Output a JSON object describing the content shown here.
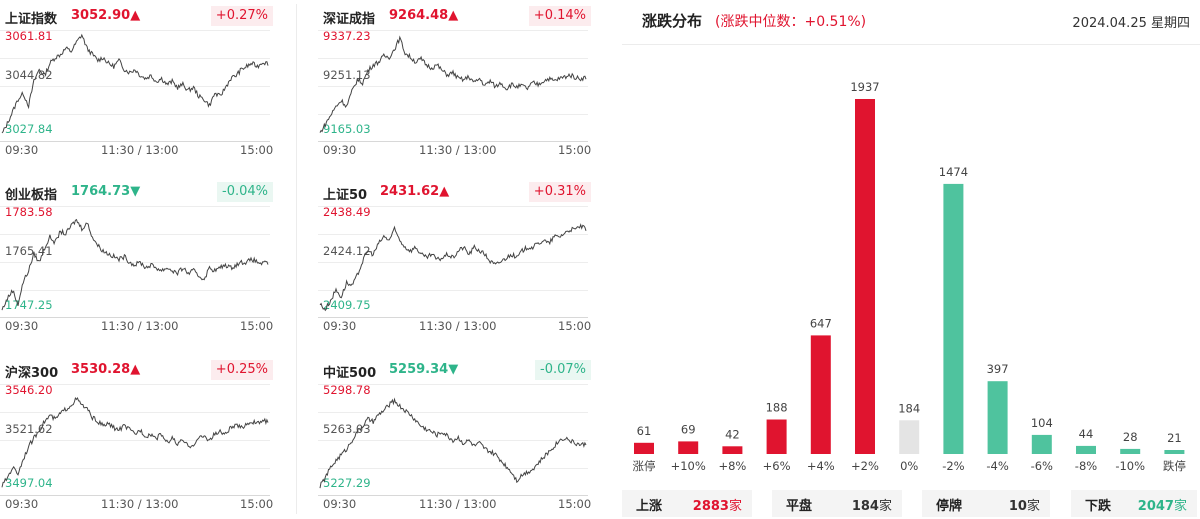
{
  "panels": [
    {
      "name": "上证指数",
      "price": "3052.90",
      "arrow": "▲",
      "direction": "up",
      "change": "+0.27%",
      "y_top": "3061.81",
      "y_mid": "3044.82",
      "y_bot": "3027.84",
      "x_start": "09:30",
      "x_mid": "11:30 / 13:00",
      "x_end": "15:00",
      "series": [
        3028.5,
        3032,
        3036,
        3040,
        3042,
        3038,
        3046,
        3050,
        3048,
        3052,
        3054,
        3055,
        3057,
        3056,
        3059,
        3061.5,
        3057,
        3055,
        3053,
        3054,
        3052,
        3051,
        3053,
        3050,
        3049,
        3050,
        3048,
        3047,
        3048,
        3046,
        3047,
        3045,
        3046,
        3044,
        3045,
        3043,
        3044,
        3041,
        3040,
        3038,
        3042,
        3041,
        3044,
        3047,
        3048,
        3050,
        3051,
        3052,
        3051,
        3052.5,
        3052
      ]
    },
    {
      "name": "深证成指",
      "price": "9264.48",
      "arrow": "▲",
      "direction": "up",
      "change": "+0.14%",
      "y_top": "9337.23",
      "y_mid": "9251.13",
      "y_bot": "9165.03",
      "x_start": "09:30",
      "x_mid": "11:30 / 13:00",
      "x_end": "15:00",
      "series": [
        9170,
        9185,
        9200,
        9215,
        9225,
        9215,
        9240,
        9260,
        9255,
        9275,
        9285,
        9290,
        9300,
        9298,
        9312,
        9330,
        9305,
        9298,
        9290,
        9295,
        9285,
        9280,
        9285,
        9275,
        9268,
        9272,
        9262,
        9260,
        9265,
        9255,
        9262,
        9250,
        9258,
        9248,
        9255,
        9245,
        9252,
        9248,
        9250,
        9245,
        9255,
        9252,
        9258,
        9262,
        9258,
        9262,
        9265,
        9268,
        9264,
        9262,
        9264
      ]
    },
    {
      "name": "创业板指",
      "price": "1764.73",
      "arrow": "▼",
      "direction": "down",
      "change": "-0.04%",
      "y_top": "1783.58",
      "y_mid": "1765.41",
      "y_bot": "1747.25",
      "x_start": "09:30",
      "x_mid": "11:30 / 13:00",
      "x_end": "15:00",
      "series": [
        1748,
        1752,
        1755,
        1750,
        1758,
        1762,
        1768,
        1765,
        1770,
        1774,
        1772,
        1776,
        1775,
        1778,
        1780,
        1777,
        1779,
        1774,
        1771,
        1769,
        1768,
        1767,
        1766,
        1767,
        1765,
        1764,
        1765,
        1763,
        1764,
        1763,
        1762,
        1763,
        1762,
        1761,
        1763,
        1761,
        1762,
        1760,
        1759,
        1763,
        1762,
        1763,
        1764,
        1763,
        1764,
        1765,
        1765,
        1766,
        1765,
        1764.5,
        1764.7
      ]
    },
    {
      "name": "上证50",
      "price": "2431.62",
      "arrow": "▲",
      "direction": "up",
      "change": "+0.31%",
      "y_top": "2438.49",
      "y_mid": "2424.12",
      "y_bot": "2409.75",
      "x_start": "09:30",
      "x_mid": "11:30 / 13:00",
      "x_end": "15:00",
      "series": [
        2412,
        2410.5,
        2413,
        2416,
        2414,
        2418,
        2417,
        2420,
        2424,
        2427,
        2426,
        2429,
        2431,
        2430,
        2433,
        2430,
        2428,
        2427,
        2428,
        2426,
        2425,
        2426,
        2424.5,
        2425,
        2426,
        2425,
        2427,
        2428,
        2426,
        2428,
        2427,
        2426,
        2424,
        2423,
        2424,
        2425,
        2426,
        2425,
        2427,
        2428,
        2428,
        2429,
        2430,
        2429,
        2431,
        2431,
        2432,
        2433,
        2433,
        2434,
        2433
      ]
    },
    {
      "name": "沪深300",
      "price": "3530.28",
      "arrow": "▲",
      "direction": "up",
      "change": "+0.25%",
      "y_top": "3546.20",
      "y_mid": "3521.62",
      "y_bot": "3497.04",
      "x_start": "09:30",
      "x_mid": "11:30 / 13:00",
      "x_end": "15:00",
      "series": [
        3499,
        3503,
        3508,
        3505,
        3512,
        3518,
        3522,
        3526,
        3530,
        3533,
        3531,
        3534,
        3536,
        3538,
        3541,
        3538,
        3536,
        3532,
        3530,
        3528,
        3529,
        3527,
        3526,
        3528,
        3526,
        3524,
        3526,
        3523,
        3524,
        3522,
        3524,
        3520,
        3522,
        3519,
        3521,
        3518,
        3519,
        3522,
        3523,
        3521,
        3524,
        3525,
        3524,
        3527,
        3528,
        3527,
        3529,
        3530,
        3529,
        3530.5,
        3530
      ]
    },
    {
      "name": "中证500",
      "price": "5259.34",
      "arrow": "▼",
      "direction": "down",
      "change": "-0.07%",
      "y_top": "5298.78",
      "y_mid": "5263.03",
      "y_bot": "5227.29",
      "x_start": "09:30",
      "x_mid": "11:30 / 13:00",
      "x_end": "15:00",
      "series": [
        5230,
        5236,
        5243,
        5248,
        5252,
        5256,
        5262,
        5268,
        5272,
        5277,
        5275,
        5280,
        5283,
        5287,
        5290,
        5286,
        5283,
        5280,
        5276,
        5272,
        5270,
        5268,
        5266,
        5268,
        5265,
        5262,
        5264,
        5260,
        5262,
        5258,
        5260,
        5256,
        5254,
        5252,
        5248,
        5244,
        5240,
        5234,
        5238,
        5240,
        5242,
        5246,
        5250,
        5254,
        5258,
        5262,
        5264,
        5262,
        5260,
        5259,
        5259.3
      ]
    }
  ],
  "distribution": {
    "title": "涨跌分布",
    "median": "(涨跌中位数：+0.51%)",
    "date": "2024.04.25 星期四",
    "chart_data": {
      "type": "bar",
      "categories": [
        "涨停",
        "+10%",
        "+8%",
        "+6%",
        "+4%",
        "+2%",
        "0%",
        "-2%",
        "-4%",
        "-6%",
        "-8%",
        "-10%",
        "跌停"
      ],
      "values": [
        61,
        69,
        42,
        188,
        647,
        1937,
        184,
        1474,
        397,
        104,
        44,
        28,
        21
      ],
      "colors": [
        "#e0142f",
        "#e0142f",
        "#e0142f",
        "#e0142f",
        "#e0142f",
        "#e0142f",
        "#e4e4e4",
        "#4fc39e",
        "#4fc39e",
        "#4fc39e",
        "#4fc39e",
        "#4fc39e",
        "#4fc39e"
      ]
    },
    "summary": [
      {
        "label": "上涨",
        "value": "2883",
        "unit": "家",
        "color": "#e0142f"
      },
      {
        "label": "平盘",
        "value": "184",
        "unit": "家",
        "color": "#333333"
      },
      {
        "label": "停牌",
        "value": "10",
        "unit": "家",
        "color": "#333333"
      },
      {
        "label": "下跌",
        "value": "2047",
        "unit": "家",
        "color": "#2eb48a"
      }
    ]
  }
}
